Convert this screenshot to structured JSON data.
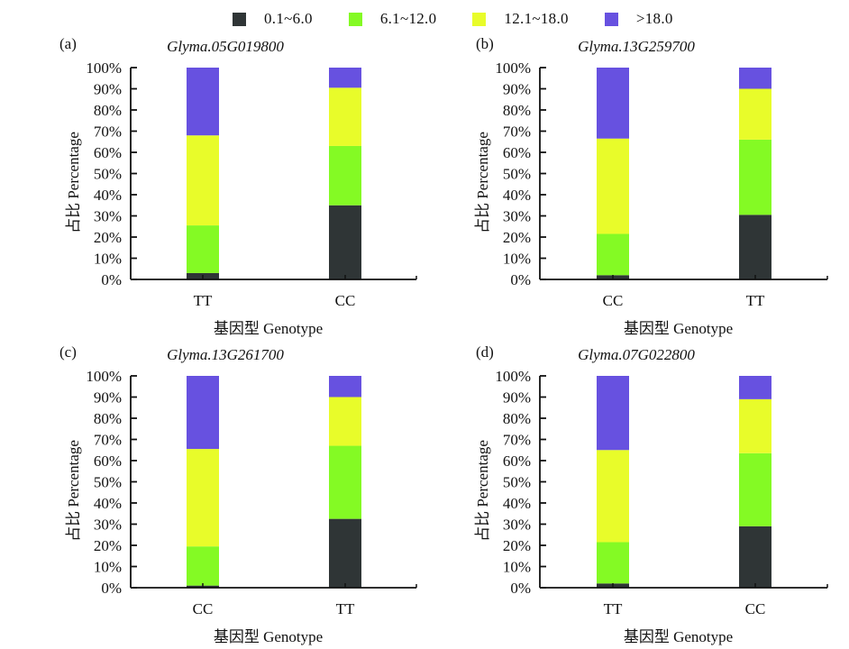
{
  "legend": {
    "items": [
      {
        "label": "0.1~6.0",
        "color": "#2f3536"
      },
      {
        "label": "6.1~12.0",
        "color": "#84fa24"
      },
      {
        "label": "12.1~18.0",
        "color": "#e8fc2a"
      },
      {
        "label": ">18.0",
        "color": "#6751e0"
      }
    ]
  },
  "chart_data": [
    {
      "type": "bar",
      "stacked": true,
      "panel": "(a)",
      "title": "Glyma.05G019800",
      "xlabel": "基因型  Genotype",
      "ylabel": "占比 Percentage",
      "ylim": [
        0,
        100
      ],
      "yticks": [
        "0%",
        "10%",
        "20%",
        "30%",
        "40%",
        "50%",
        "60%",
        "70%",
        "80%",
        "90%",
        "100%"
      ],
      "categories": [
        "TT",
        "CC"
      ],
      "series": [
        {
          "name": "0.1~6.0",
          "values": [
            3,
            35
          ]
        },
        {
          "name": "6.1~12.0",
          "values": [
            22.5,
            28
          ]
        },
        {
          "name": "12.1~18.0",
          "values": [
            42.5,
            27.5
          ]
        },
        {
          "name": ">18.0",
          "values": [
            32,
            9.5
          ]
        }
      ]
    },
    {
      "type": "bar",
      "stacked": true,
      "panel": "(b)",
      "title": "Glyma.13G259700",
      "xlabel": "基因型  Genotype",
      "ylabel": "占比 Percentage",
      "ylim": [
        0,
        100
      ],
      "yticks": [
        "0%",
        "10%",
        "20%",
        "30%",
        "40%",
        "50%",
        "60%",
        "70%",
        "80%",
        "90%",
        "100%"
      ],
      "categories": [
        "CC",
        "TT"
      ],
      "series": [
        {
          "name": "0.1~6.0",
          "values": [
            2,
            30.5
          ]
        },
        {
          "name": "6.1~12.0",
          "values": [
            19.5,
            35.5
          ]
        },
        {
          "name": "12.1~18.0",
          "values": [
            45,
            24
          ]
        },
        {
          "name": ">18.0",
          "values": [
            33.5,
            10
          ]
        }
      ]
    },
    {
      "type": "bar",
      "stacked": true,
      "panel": "(c)",
      "title": "Glyma.13G261700",
      "xlabel": "基因型  Genotype",
      "ylabel": "占比 Percentage",
      "ylim": [
        0,
        100
      ],
      "yticks": [
        "0%",
        "10%",
        "20%",
        "30%",
        "40%",
        "50%",
        "60%",
        "70%",
        "80%",
        "90%",
        "100%"
      ],
      "categories": [
        "CC",
        "TT"
      ],
      "series": [
        {
          "name": "0.1~6.0",
          "values": [
            1,
            32.5
          ]
        },
        {
          "name": "6.1~12.0",
          "values": [
            18.5,
            34.5
          ]
        },
        {
          "name": "12.1~18.0",
          "values": [
            46,
            23
          ]
        },
        {
          "name": ">18.0",
          "values": [
            34.5,
            10
          ]
        }
      ]
    },
    {
      "type": "bar",
      "stacked": true,
      "panel": "(d)",
      "title": "Glyma.07G022800",
      "xlabel": "基因型  Genotype",
      "ylabel": "占比 Percentage",
      "ylim": [
        0,
        100
      ],
      "yticks": [
        "0%",
        "10%",
        "20%",
        "30%",
        "40%",
        "50%",
        "60%",
        "70%",
        "80%",
        "90%",
        "100%"
      ],
      "categories": [
        "TT",
        "CC"
      ],
      "series": [
        {
          "name": "0.1~6.0",
          "values": [
            2,
            29
          ]
        },
        {
          "name": "6.1~12.0",
          "values": [
            19.5,
            34.5
          ]
        },
        {
          "name": "12.1~18.0",
          "values": [
            43.5,
            25.5
          ]
        },
        {
          "name": ">18.0",
          "values": [
            35,
            11
          ]
        }
      ]
    }
  ]
}
